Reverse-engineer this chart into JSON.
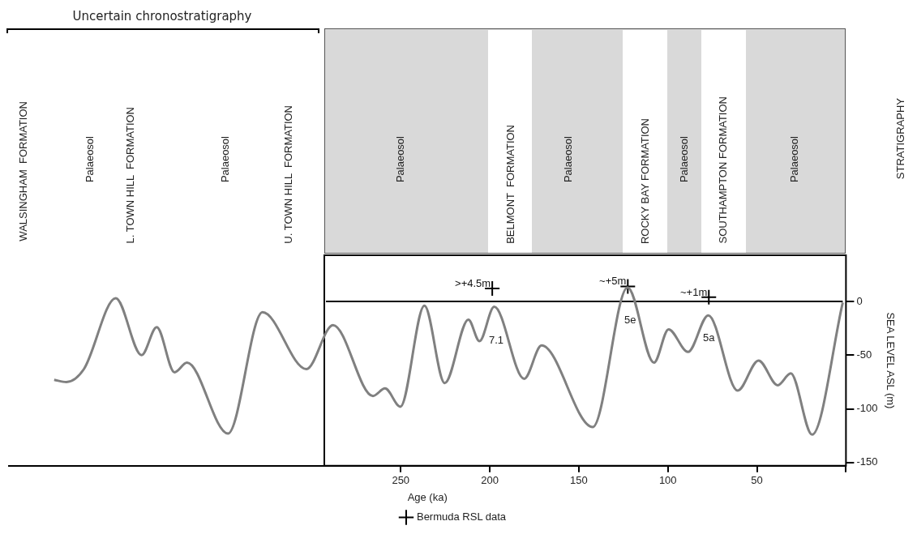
{
  "chart_data": {
    "type": "line",
    "xlabel": "Age (ka)",
    "ylabel": "SEA LEVEL ASL (m)",
    "xlim": [
      470,
      0
    ],
    "xticks": [
      250,
      200,
      150,
      100,
      50,
      {
        "value": 0,
        "label": null
      }
    ],
    "ylim": [
      -153,
      43
    ],
    "yticks": [
      0,
      -50,
      -100,
      -150
    ],
    "grid": false,
    "legend": "bottom",
    "series": [
      {
        "color": "#808080",
        "x": [
          444.6,
          437.7,
          427.9,
          410,
          395.5,
          387,
          377,
          370,
          347,
          327.6,
          303,
          288,
          265.6,
          258.8,
          250.2,
          236.7,
          225.3,
          212,
          205.8,
          197.5,
          180.7,
          170.9,
          142.2,
          122.6,
          107.8,
          99.6,
          88.7,
          77.3,
          60.8,
          49.1,
          38.3,
          31,
          19,
          1.8
        ],
        "values": [
          -73,
          -75,
          -63,
          3,
          -50,
          -24,
          -66,
          -57,
          -123,
          -10,
          -63,
          -22,
          -88,
          -81,
          -98,
          -4,
          -76,
          -17,
          -37,
          -5,
          -72,
          -41,
          -117,
          13,
          -57,
          -26,
          -47,
          -13,
          -83,
          -55,
          -78,
          -67,
          -124,
          -1
        ]
      },
      {
        "type": "scatter",
        "name": "Bermuda RSL data",
        "color": "#000000",
        "marker": "cross",
        "x": [
          198.6,
          122.5,
          77
        ],
        "values": [
          12,
          14,
          4
        ]
      }
    ],
    "ref_lines": [
      {
        "axis": "y",
        "value": 0,
        "color": "#000000"
      }
    ],
    "annotations": [
      "Uncertain chronostratigraphy",
      "STRATIGRAPHY",
      "WALSINGHAM  FORMATION",
      "Palaeosol",
      "L. TOWN HILL  FORMATION",
      "Palaeosol",
      "U. TOWN HILL  FORMATION",
      "Palaeosol",
      "BELMONT  FORMATION",
      "Palaeosol",
      "ROCKY BAY FORMATION",
      "Palaeosol",
      "SOUTHAMPTON FORMATION",
      "Palaeosol",
      {
        "text": ">+4.5m",
        "x": 198.6,
        "y": 12
      },
      {
        "text": "~+5m",
        "x": 122.5,
        "y": 14
      },
      {
        "text": "~+1m",
        "x": 77,
        "y": 4
      },
      "7.1",
      "5e",
      "5a"
    ]
  }
}
